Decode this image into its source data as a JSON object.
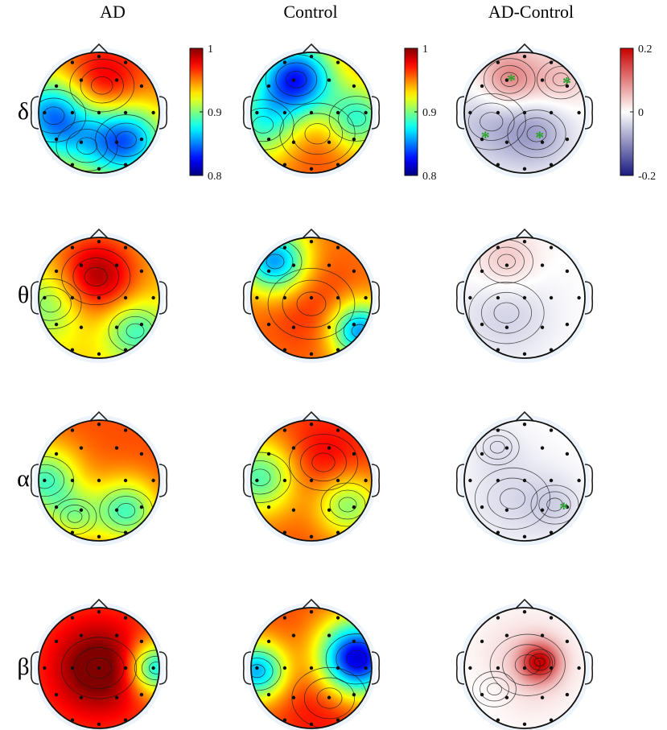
{
  "column_titles": [
    "AD",
    "Control",
    "AD-Control"
  ],
  "row_labels": [
    "δ",
    "θ",
    "α",
    "β"
  ],
  "colorbars": [
    {
      "ticks": [
        "1",
        "0.9",
        "0.8"
      ],
      "range": [
        0.8,
        1.0
      ],
      "scheme": "jet"
    },
    {
      "ticks": [
        "1",
        "0.9",
        "0.8"
      ],
      "range": [
        0.8,
        1.0
      ],
      "scheme": "jet"
    },
    {
      "ticks": [
        "0.2",
        "0",
        "-0.2"
      ],
      "range": [
        -0.2,
        0.2
      ],
      "scheme": "diverging-blue-white-red"
    }
  ],
  "significance_marker": "*",
  "colors": {
    "jet_high": "#8b0000",
    "jet_mid": "#7fff7f",
    "jet_low": "#00008b",
    "div_high": "#d7191c",
    "div_mid": "#ffffff",
    "div_low": "#1a1a80",
    "marker": "#2ca02c",
    "head_halo": "#dde9f5"
  },
  "maps": [
    {
      "row": "δ",
      "column": "AD",
      "base": 0.95,
      "sources": [
        [
          0.05,
          -0.45,
          0.04,
          0.22
        ],
        [
          -0.75,
          0.05,
          -0.1,
          0.22
        ],
        [
          0.45,
          0.45,
          -0.1,
          0.2
        ],
        [
          -0.2,
          0.55,
          -0.03,
          0.2
        ]
      ]
    },
    {
      "row": "δ",
      "column": "Control",
      "base": 0.95,
      "sources": [
        [
          -0.25,
          -0.55,
          -0.12,
          0.2
        ],
        [
          0.75,
          0.1,
          -0.07,
          0.16
        ],
        [
          -0.8,
          0.2,
          -0.06,
          0.2
        ],
        [
          0.1,
          0.35,
          0.02,
          0.3
        ]
      ]
    },
    {
      "row": "δ",
      "column": "AD-Control",
      "base": 0.0,
      "sources": [
        [
          -0.25,
          -0.55,
          0.11,
          0.14
        ],
        [
          0.6,
          -0.55,
          0.05,
          0.12
        ],
        [
          -0.55,
          0.15,
          -0.06,
          0.25
        ],
        [
          0.2,
          0.35,
          -0.07,
          0.18
        ]
      ],
      "markers": [
        [
          -0.22,
          -0.55
        ],
        [
          0.7,
          -0.5
        ],
        [
          -0.65,
          0.4
        ],
        [
          0.25,
          0.4
        ]
      ]
    },
    {
      "row": "θ",
      "column": "AD",
      "base": 0.935,
      "sources": [
        [
          -0.05,
          -0.35,
          0.06,
          0.25
        ],
        [
          -0.8,
          0.1,
          -0.04,
          0.2
        ],
        [
          0.6,
          0.55,
          -0.05,
          0.15
        ]
      ]
    },
    {
      "row": "θ",
      "column": "Control",
      "base": 0.95,
      "sources": [
        [
          -0.6,
          -0.6,
          -0.1,
          0.15
        ],
        [
          0.8,
          0.55,
          -0.1,
          0.12
        ],
        [
          0.0,
          0.1,
          0.02,
          0.4
        ]
      ]
    },
    {
      "row": "θ",
      "column": "AD-Control",
      "base": 0.0,
      "sources": [
        [
          -0.3,
          -0.6,
          0.05,
          0.15
        ],
        [
          -0.3,
          0.25,
          -0.04,
          0.3
        ]
      ]
    },
    {
      "row": "α",
      "column": "AD",
      "base": 0.96,
      "sources": [
        [
          -0.9,
          0.0,
          -0.07,
          0.18
        ],
        [
          0.45,
          0.5,
          -0.07,
          0.15
        ],
        [
          -0.4,
          0.6,
          -0.04,
          0.1
        ]
      ]
    },
    {
      "row": "α",
      "column": "Control",
      "base": 0.96,
      "sources": [
        [
          -0.85,
          -0.05,
          -0.07,
          0.2
        ],
        [
          0.6,
          0.4,
          -0.06,
          0.15
        ],
        [
          0.2,
          -0.3,
          0.02,
          0.25
        ]
      ]
    },
    {
      "row": "α",
      "column": "AD-Control",
      "base": 0.0,
      "sources": [
        [
          -0.45,
          -0.55,
          -0.02,
          0.1
        ],
        [
          -0.2,
          0.3,
          -0.03,
          0.3
        ],
        [
          0.5,
          0.4,
          -0.03,
          0.12
        ]
      ],
      "markers": [
        [
          0.65,
          0.45
        ]
      ]
    },
    {
      "row": "β",
      "column": "AD",
      "base": 0.96,
      "sources": [
        [
          0.0,
          0.0,
          0.05,
          0.3
        ],
        [
          0.95,
          0.0,
          -0.09,
          0.1
        ]
      ]
    },
    {
      "row": "β",
      "column": "Control",
      "base": 0.96,
      "sources": [
        [
          0.75,
          -0.15,
          -0.15,
          0.2
        ],
        [
          -0.9,
          0.05,
          -0.1,
          0.12
        ],
        [
          0.3,
          0.5,
          0.02,
          0.3
        ]
      ]
    },
    {
      "row": "β",
      "column": "AD-Control",
      "base": 0.0,
      "sources": [
        [
          0.25,
          -0.1,
          0.18,
          0.05
        ],
        [
          0.05,
          -0.05,
          0.04,
          0.3
        ],
        [
          -0.5,
          0.35,
          -0.01,
          0.1
        ]
      ]
    }
  ]
}
